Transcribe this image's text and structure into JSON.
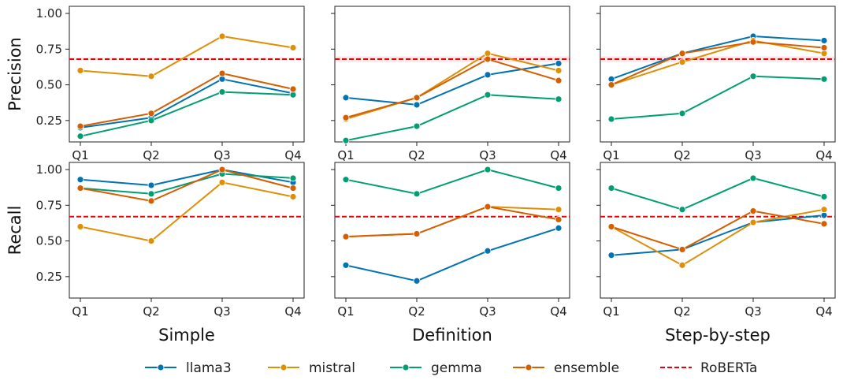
{
  "chart_data": {
    "type": "line",
    "categories": [
      "Q1",
      "Q2",
      "Q3",
      "Q4"
    ],
    "ylim": [
      0.1,
      1.05
    ],
    "yticks": [
      "0.25",
      "0.50",
      "0.75",
      "1.00"
    ],
    "columns": [
      "Simple",
      "Definition",
      "Step-by-step"
    ],
    "rows": [
      "Precision",
      "Recall"
    ],
    "colors": {
      "llama3": "#0173b2",
      "mistral": "#de8f05",
      "gemma": "#029e73",
      "ensemble": "#d55e00",
      "RoBERTa": "#e8000b"
    },
    "legend": [
      {
        "name": "llama3",
        "style": "line-marker"
      },
      {
        "name": "mistral",
        "style": "line-marker"
      },
      {
        "name": "gemma",
        "style": "line-marker"
      },
      {
        "name": "ensemble",
        "style": "line-marker"
      },
      {
        "name": "RoBERTa",
        "style": "dashed"
      }
    ],
    "panels": [
      {
        "row": "Precision",
        "column": "Simple",
        "baseline": 0.68,
        "baseline_band": 0.02,
        "series": [
          {
            "name": "llama3",
            "values": [
              0.2,
              0.27,
              0.54,
              0.44
            ]
          },
          {
            "name": "mistral",
            "values": [
              0.6,
              0.56,
              0.84,
              0.76
            ]
          },
          {
            "name": "gemma",
            "values": [
              0.14,
              0.25,
              0.45,
              0.43
            ]
          },
          {
            "name": "ensemble",
            "values": [
              0.21,
              0.3,
              0.58,
              0.47
            ]
          }
        ]
      },
      {
        "row": "Precision",
        "column": "Definition",
        "baseline": 0.68,
        "baseline_band": 0.04,
        "series": [
          {
            "name": "llama3",
            "values": [
              0.41,
              0.36,
              0.57,
              0.65
            ]
          },
          {
            "name": "mistral",
            "values": [
              0.26,
              0.41,
              0.72,
              0.6
            ]
          },
          {
            "name": "gemma",
            "values": [
              0.11,
              0.21,
              0.43,
              0.4
            ]
          },
          {
            "name": "ensemble",
            "values": [
              0.27,
              0.41,
              0.68,
              0.53
            ]
          }
        ]
      },
      {
        "row": "Precision",
        "column": "Step-by-step",
        "baseline": 0.68,
        "baseline_band": 0.04,
        "series": [
          {
            "name": "llama3",
            "values": [
              0.54,
              0.72,
              0.84,
              0.81
            ]
          },
          {
            "name": "mistral",
            "values": [
              0.5,
              0.66,
              0.81,
              0.72
            ]
          },
          {
            "name": "gemma",
            "values": [
              0.26,
              0.3,
              0.56,
              0.54
            ]
          },
          {
            "name": "ensemble",
            "values": [
              0.5,
              0.72,
              0.8,
              0.76
            ]
          }
        ]
      },
      {
        "row": "Recall",
        "column": "Simple",
        "baseline": 0.67,
        "baseline_band": 0,
        "series": [
          {
            "name": "llama3",
            "values": [
              0.93,
              0.89,
              1.0,
              0.91
            ]
          },
          {
            "name": "mistral",
            "values": [
              0.6,
              0.5,
              0.91,
              0.81
            ]
          },
          {
            "name": "gemma",
            "values": [
              0.87,
              0.83,
              0.97,
              0.94
            ]
          },
          {
            "name": "ensemble",
            "values": [
              0.87,
              0.78,
              1.0,
              0.87
            ]
          }
        ]
      },
      {
        "row": "Recall",
        "column": "Definition",
        "baseline": 0.67,
        "baseline_band": 0,
        "series": [
          {
            "name": "llama3",
            "values": [
              0.33,
              0.22,
              0.43,
              0.59
            ]
          },
          {
            "name": "mistral",
            "values": [
              0.53,
              0.55,
              0.74,
              0.72
            ]
          },
          {
            "name": "gemma",
            "values": [
              0.93,
              0.83,
              1.0,
              0.87
            ]
          },
          {
            "name": "ensemble",
            "values": [
              0.53,
              0.55,
              0.74,
              0.65
            ]
          }
        ]
      },
      {
        "row": "Recall",
        "column": "Step-by-step",
        "baseline": 0.67,
        "baseline_band": 0,
        "series": [
          {
            "name": "llama3",
            "values": [
              0.4,
              0.44,
              0.63,
              0.68
            ]
          },
          {
            "name": "mistral",
            "values": [
              0.6,
              0.33,
              0.63,
              0.72
            ]
          },
          {
            "name": "gemma",
            "values": [
              0.87,
              0.72,
              0.94,
              0.81
            ]
          },
          {
            "name": "ensemble",
            "values": [
              0.6,
              0.44,
              0.71,
              0.62
            ]
          }
        ]
      }
    ]
  }
}
